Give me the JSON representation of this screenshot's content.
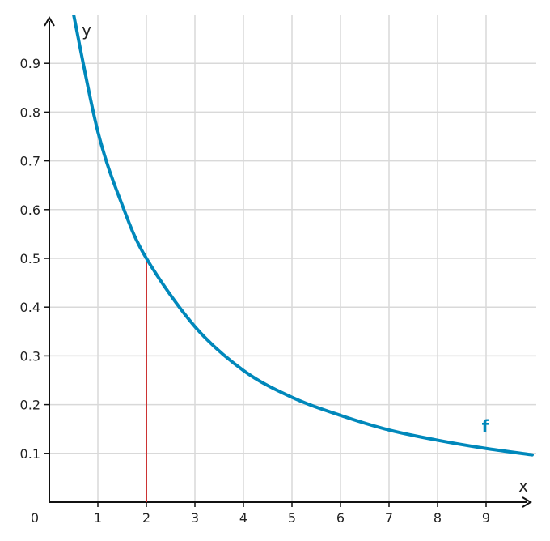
{
  "chart_data": {
    "type": "line",
    "xlabel": "x",
    "ylabel": "y",
    "xlim": [
      0,
      9.95
    ],
    "ylim": [
      0,
      1.0
    ],
    "origin_label": "0",
    "xticks": [
      1,
      2,
      3,
      4,
      5,
      6,
      7,
      8,
      9
    ],
    "yticks": [
      0.1,
      0.2,
      0.3,
      0.4,
      0.5,
      0.6,
      0.7,
      0.8,
      0.9
    ],
    "grid": true,
    "series": [
      {
        "name": "f",
        "color": "#0088BB",
        "points": [
          {
            "x": 0.5,
            "y": 1.0
          },
          {
            "x": 1,
            "y": 0.76
          },
          {
            "x": 1.5,
            "y": 0.61
          },
          {
            "x": 2,
            "y": 0.5
          },
          {
            "x": 3,
            "y": 0.36
          },
          {
            "x": 4,
            "y": 0.27
          },
          {
            "x": 5,
            "y": 0.215
          },
          {
            "x": 6,
            "y": 0.178
          },
          {
            "x": 7,
            "y": 0.148
          },
          {
            "x": 8,
            "y": 0.127
          },
          {
            "x": 9,
            "y": 0.11
          },
          {
            "x": 9.95,
            "y": 0.097
          }
        ]
      }
    ],
    "markers": [
      {
        "type": "vertical-line",
        "x": 2,
        "y_from": 0,
        "y_to": 0.5,
        "color": "#CC3333"
      }
    ]
  }
}
